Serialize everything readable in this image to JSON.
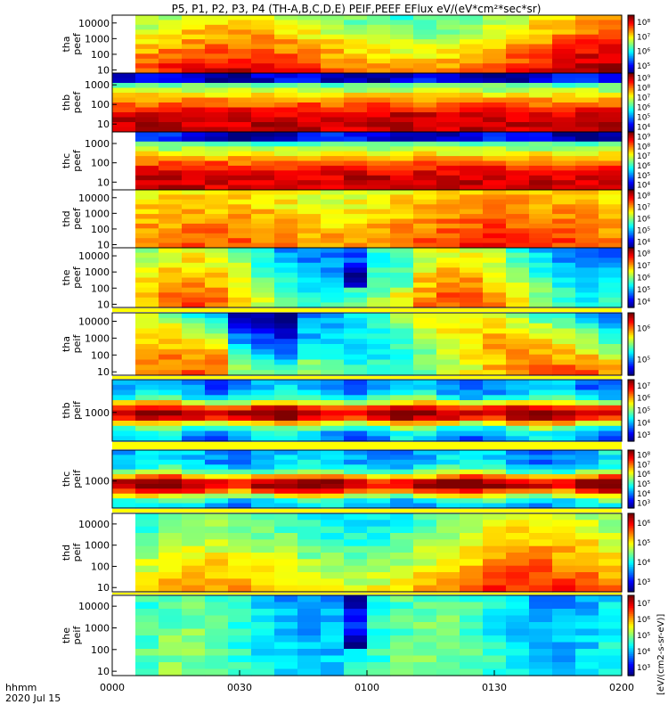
{
  "chart_data": {
    "type": "heatmap",
    "title": "P5, P1, P2, P3, P4 (TH-A,B,C,D,E) PEIF,PEEF EFlux eV/(eV*cm²*sec*sr)",
    "x_axis": {
      "tick_labels": [
        "0000",
        "0030",
        "0100",
        "0130",
        "0200"
      ],
      "range_minutes": [
        0,
        120
      ],
      "row_label_1": "hhmm",
      "row_label_2": "2020 Jul 15"
    },
    "colorbar_title": "[eV/(cm2-s-sr-eV)]",
    "panels": [
      {
        "probe": "tha",
        "product": "peef",
        "yticks": [
          "10",
          "100",
          "1000",
          "10000"
        ],
        "ylog": [
          0.8,
          4.5
        ],
        "cbar": [
          "10⁵",
          "10⁶",
          "10⁷",
          "10⁸"
        ],
        "start": 0.5,
        "profile": "tha_e"
      },
      {
        "probe": "thb",
        "product": "peef",
        "yticks": [
          "10",
          "100",
          "1000"
        ],
        "ylog": [
          0.6,
          3.6
        ],
        "cbar": [
          "10⁴",
          "10⁵",
          "10⁶",
          "10⁷",
          "10⁸",
          "10⁹"
        ],
        "start": 0,
        "profile": "thb_e"
      },
      {
        "probe": "thc",
        "product": "peef",
        "yticks": [
          "10",
          "100",
          "1000"
        ],
        "ylog": [
          0.6,
          3.6
        ],
        "cbar": [
          "10⁴",
          "10⁵",
          "10⁶",
          "10⁷",
          "10⁸",
          "10⁹"
        ],
        "start": 0.3,
        "profile": "thc_e"
      },
      {
        "probe": "thd",
        "product": "peef",
        "yticks": [
          "10",
          "100",
          "1000",
          "10000"
        ],
        "ylog": [
          0.8,
          4.5
        ],
        "cbar": [
          "10⁴",
          "10⁵",
          "10⁶",
          "10⁷",
          "10⁸"
        ],
        "start": 0.5,
        "profile": "thd_e"
      },
      {
        "probe": "the",
        "product": "peef",
        "yticks": [
          "10",
          "100",
          "1000",
          "10000"
        ],
        "ylog": [
          0.8,
          4.5
        ],
        "cbar": [
          "10⁴",
          "10⁵",
          "10⁶",
          "10⁷",
          "10⁸"
        ],
        "start": 0.5,
        "profile": "the_e"
      },
      {
        "probe": "tha",
        "product": "peif",
        "yticks": [
          "10",
          "100",
          "1000",
          "10000"
        ],
        "ylog": [
          0.8,
          4.5
        ],
        "cbar": [
          "10⁵",
          "10⁶"
        ],
        "start": 0.5,
        "profile": "tha_i"
      },
      {
        "probe": "thb",
        "product": "peif",
        "yticks": [
          "1000"
        ],
        "ylog": [
          2.3,
          3.8
        ],
        "cbar": [
          "10³",
          "10⁴",
          "10⁵",
          "10⁶",
          "10⁷"
        ],
        "start": 0,
        "profile": "thb_i"
      },
      {
        "probe": "thc",
        "product": "peif",
        "yticks": [
          "1000"
        ],
        "ylog": [
          2.3,
          3.8
        ],
        "cbar": [
          "10³",
          "10⁴",
          "10⁵",
          "10⁶",
          "10⁷",
          "10⁸"
        ],
        "start": 0,
        "profile": "thc_i"
      },
      {
        "probe": "thd",
        "product": "peif",
        "yticks": [
          "10",
          "100",
          "1000",
          "10000"
        ],
        "ylog": [
          0.8,
          4.5
        ],
        "cbar": [
          "10³",
          "10⁴",
          "10⁵",
          "10⁶"
        ],
        "start": 0.4,
        "profile": "thd_i"
      },
      {
        "probe": "the",
        "product": "peif",
        "yticks": [
          "10",
          "100",
          "1000",
          "10000"
        ],
        "ylog": [
          0.8,
          4.5
        ],
        "cbar": [
          "10³",
          "10⁴",
          "10⁵",
          "10⁶",
          "10⁷"
        ],
        "start": 0.5,
        "profile": "the_i"
      }
    ]
  }
}
